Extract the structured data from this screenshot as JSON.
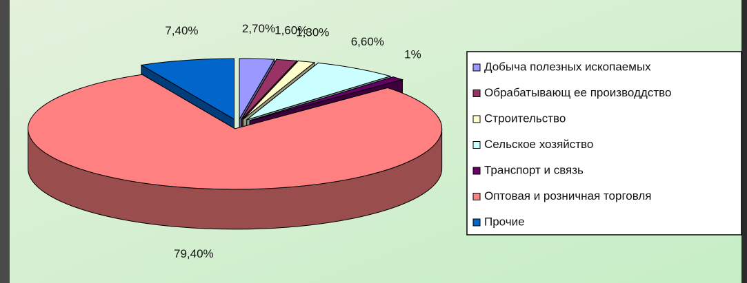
{
  "chart_data": {
    "type": "pie",
    "categories": [
      "Добыча полезных ископаемых",
      "Обрабатывающ ее производдство",
      "Строительство",
      "Сельское хозяйство",
      "Транспорт и связь",
      "Оптовая и розничная торговля",
      "Прочие"
    ],
    "values": [
      2.7,
      1.6,
      1.3,
      6.6,
      1,
      79.4,
      7.4
    ],
    "value_labels": [
      "2,70%",
      "1,60%",
      "1,30%",
      "6,60%",
      "1%",
      "79,40%",
      "7,40%"
    ],
    "colors": [
      "#9999ff",
      "#993366",
      "#ffffcc",
      "#ccffff",
      "#660066",
      "#ff8080",
      "#0066cc"
    ],
    "legend": "right"
  }
}
